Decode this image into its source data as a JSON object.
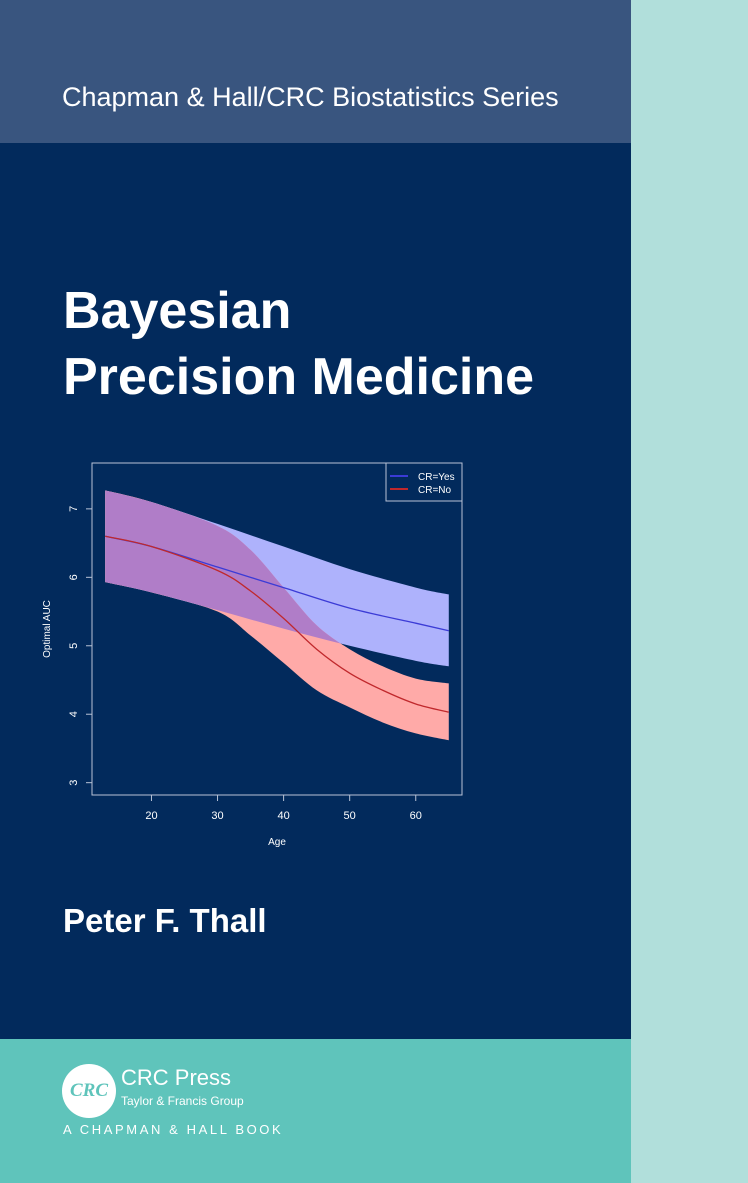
{
  "cover": {
    "series": "Chapman & Hall/CRC Biostatistics Series",
    "title_line1": "Bayesian",
    "title_line2": "Precision Medicine",
    "author": "Peter F. Thall",
    "publisher": "CRC Press",
    "publisher_logo": "CRC",
    "publisher_group": "Taylor & Francis Group",
    "imprint": "A CHAPMAN & HALL BOOK",
    "colors": {
      "background": "#022a5c",
      "series_band": "#39557f",
      "spine_strip": "#b1dfdb",
      "footer": "#5fc4bb"
    }
  },
  "chart_data": {
    "type": "line",
    "xlabel": "Age",
    "ylabel": "Optimal AUC",
    "xlim": [
      11,
      67
    ],
    "ylim": [
      2.82,
      7.67
    ],
    "xticks": [
      20,
      30,
      40,
      50,
      60
    ],
    "yticks": [
      3,
      4,
      5,
      6,
      7
    ],
    "grid": false,
    "legend_position": "top-right",
    "series": [
      {
        "name": "CR=Yes",
        "color": "#3b3bd6",
        "band_color": "#aeb2fc",
        "x": [
          13,
          20,
          30,
          40,
          50,
          60,
          65
        ],
        "mean": [
          6.6,
          6.45,
          6.15,
          5.85,
          5.55,
          5.33,
          5.22
        ],
        "upper": [
          7.27,
          7.1,
          6.78,
          6.45,
          6.12,
          5.85,
          5.75
        ],
        "lower": [
          5.93,
          5.78,
          5.52,
          5.25,
          5.0,
          4.78,
          4.7
        ]
      },
      {
        "name": "CR=No",
        "color": "#c0282c",
        "band_color": "#ffaaa8",
        "x": [
          13,
          20,
          30,
          35,
          40,
          45,
          50,
          55,
          60,
          65
        ],
        "mean": [
          6.6,
          6.45,
          6.1,
          5.8,
          5.4,
          4.95,
          4.6,
          4.35,
          4.15,
          4.03
        ],
        "upper": [
          7.27,
          7.1,
          6.75,
          6.4,
          5.85,
          5.3,
          4.95,
          4.7,
          4.52,
          4.45
        ],
        "lower": [
          5.93,
          5.78,
          5.5,
          5.15,
          4.75,
          4.35,
          4.1,
          3.88,
          3.72,
          3.62
        ]
      }
    ],
    "overlap_color": "#b07dc8"
  }
}
